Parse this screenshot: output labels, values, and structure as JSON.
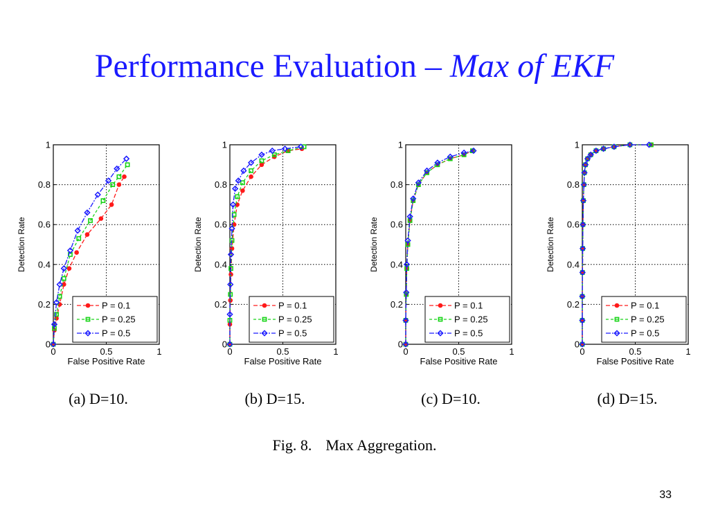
{
  "slide": {
    "title_main": "Performance Evaluation – ",
    "title_italic": "Max of EKF",
    "figure_caption_num": "Fig. 8.",
    "figure_caption_text": "Max Aggregation.",
    "page_number": "33"
  },
  "colors": {
    "title": "#1a1aff",
    "p01": "#ff1a1a",
    "p025": "#18d418",
    "p05": "#1a1aff"
  },
  "legend_labels": [
    "P = 0.1",
    "P = 0.25",
    "P = 0.5"
  ],
  "chart_data": [
    {
      "type": "line",
      "caption": "(a)  D=10.",
      "xlabel": "False Positive Rate",
      "ylabel": "Detection Rate",
      "xlim": [
        0,
        1
      ],
      "ylim": [
        0,
        1
      ],
      "xticks": [
        "0",
        "0.5",
        "1"
      ],
      "yticks": [
        "0",
        "0.2",
        "0.4",
        "0.6",
        "0.8",
        "1"
      ],
      "grid": true,
      "legend_position": "bottom-right",
      "series": [
        {
          "name": "P = 0.1",
          "color": "#ff1a1a",
          "marker": "circle",
          "x": [
            0,
            0.01,
            0.03,
            0.06,
            0.1,
            0.15,
            0.22,
            0.32,
            0.45,
            0.55,
            0.62,
            0.67
          ],
          "y": [
            0,
            0.07,
            0.13,
            0.2,
            0.3,
            0.38,
            0.46,
            0.55,
            0.63,
            0.7,
            0.8,
            0.84
          ]
        },
        {
          "name": "P = 0.25",
          "color": "#18d418",
          "marker": "square",
          "x": [
            0,
            0.01,
            0.03,
            0.06,
            0.1,
            0.16,
            0.24,
            0.35,
            0.47,
            0.56,
            0.62,
            0.7
          ],
          "y": [
            0,
            0.08,
            0.15,
            0.24,
            0.33,
            0.45,
            0.53,
            0.62,
            0.72,
            0.8,
            0.84,
            0.9
          ]
        },
        {
          "name": "P = 0.5",
          "color": "#1a1aff",
          "marker": "diamond",
          "x": [
            0,
            0.01,
            0.03,
            0.06,
            0.1,
            0.16,
            0.23,
            0.32,
            0.42,
            0.52,
            0.6,
            0.69
          ],
          "y": [
            0,
            0.1,
            0.21,
            0.3,
            0.38,
            0.47,
            0.57,
            0.66,
            0.75,
            0.82,
            0.88,
            0.93
          ]
        }
      ]
    },
    {
      "type": "line",
      "caption": "(b)  D=15.",
      "xlabel": "False Positive Rate",
      "ylabel": "Detection Rate",
      "xlim": [
        0,
        1
      ],
      "ylim": [
        0,
        1
      ],
      "xticks": [
        "0",
        "0.5",
        "1"
      ],
      "yticks": [
        "0",
        "0.2",
        "0.4",
        "0.6",
        "0.8",
        "1"
      ],
      "grid": true,
      "legend_position": "bottom-right",
      "series": [
        {
          "name": "P = 0.1",
          "color": "#ff1a1a",
          "marker": "circle",
          "x": [
            0,
            0,
            0.005,
            0.01,
            0.02,
            0.04,
            0.07,
            0.12,
            0.2,
            0.3,
            0.42,
            0.55,
            0.68
          ],
          "y": [
            0,
            0.1,
            0.22,
            0.35,
            0.48,
            0.6,
            0.7,
            0.77,
            0.84,
            0.9,
            0.94,
            0.97,
            0.98
          ]
        },
        {
          "name": "P = 0.25",
          "color": "#18d418",
          "marker": "square",
          "x": [
            0,
            0,
            0.005,
            0.01,
            0.02,
            0.04,
            0.07,
            0.12,
            0.2,
            0.3,
            0.42,
            0.55,
            0.7
          ],
          "y": [
            0,
            0.12,
            0.25,
            0.38,
            0.52,
            0.65,
            0.74,
            0.81,
            0.87,
            0.92,
            0.95,
            0.97,
            0.99
          ]
        },
        {
          "name": "P = 0.5",
          "color": "#1a1aff",
          "marker": "diamond",
          "x": [
            0,
            0,
            0.005,
            0.01,
            0.02,
            0.03,
            0.05,
            0.08,
            0.13,
            0.2,
            0.3,
            0.4,
            0.52,
            0.67
          ],
          "y": [
            0,
            0.15,
            0.3,
            0.45,
            0.58,
            0.7,
            0.78,
            0.82,
            0.87,
            0.91,
            0.95,
            0.97,
            0.98,
            0.99
          ]
        }
      ]
    },
    {
      "type": "line",
      "caption": "(c)  D=10.",
      "xlabel": "False Positive Rate",
      "ylabel": "Detection Rate",
      "xlim": [
        0,
        1
      ],
      "ylim": [
        0,
        1
      ],
      "xticks": [
        "0",
        "0.5",
        "1"
      ],
      "yticks": [
        "0",
        "0.2",
        "0.4",
        "0.6",
        "0.8",
        "1"
      ],
      "grid": true,
      "legend_position": "bottom-right",
      "series": [
        {
          "name": "P = 0.1",
          "color": "#ff1a1a",
          "marker": "circle",
          "x": [
            0,
            0,
            0.005,
            0.01,
            0.02,
            0.04,
            0.07,
            0.12,
            0.2,
            0.3,
            0.42,
            0.55,
            0.63
          ],
          "y": [
            0,
            0.12,
            0.25,
            0.38,
            0.5,
            0.62,
            0.72,
            0.8,
            0.86,
            0.9,
            0.93,
            0.95,
            0.97
          ]
        },
        {
          "name": "P = 0.25",
          "color": "#18d418",
          "marker": "square",
          "x": [
            0,
            0,
            0.005,
            0.01,
            0.02,
            0.04,
            0.07,
            0.12,
            0.2,
            0.3,
            0.42,
            0.55,
            0.63
          ],
          "y": [
            0,
            0.12,
            0.25,
            0.38,
            0.5,
            0.62,
            0.72,
            0.8,
            0.86,
            0.9,
            0.93,
            0.95,
            0.97
          ]
        },
        {
          "name": "P = 0.5",
          "color": "#1a1aff",
          "marker": "diamond",
          "x": [
            0,
            0,
            0.005,
            0.01,
            0.02,
            0.04,
            0.07,
            0.12,
            0.2,
            0.3,
            0.42,
            0.55,
            0.64
          ],
          "y": [
            0,
            0.12,
            0.26,
            0.4,
            0.52,
            0.64,
            0.73,
            0.81,
            0.87,
            0.91,
            0.94,
            0.96,
            0.97
          ]
        }
      ]
    },
    {
      "type": "line",
      "caption": "(d)  D=15.",
      "xlabel": "False Positive Rate",
      "ylabel": "Detection Rate",
      "xlim": [
        0,
        1
      ],
      "ylim": [
        0,
        1
      ],
      "xticks": [
        "0",
        "0.5",
        "1"
      ],
      "yticks": [
        "0",
        "0.2",
        "0.4",
        "0.6",
        "0.8",
        "1"
      ],
      "grid": true,
      "legend_position": "bottom-right",
      "series": [
        {
          "name": "P = 0.1",
          "color": "#ff1a1a",
          "marker": "circle",
          "x": [
            0,
            0,
            0,
            0.002,
            0.004,
            0.006,
            0.01,
            0.015,
            0.02,
            0.03,
            0.05,
            0.08,
            0.13,
            0.2,
            0.3,
            0.45,
            0.65
          ],
          "y": [
            0,
            0.12,
            0.24,
            0.36,
            0.48,
            0.6,
            0.72,
            0.8,
            0.86,
            0.9,
            0.93,
            0.95,
            0.97,
            0.98,
            0.99,
            1.0,
            1.0
          ]
        },
        {
          "name": "P = 0.25",
          "color": "#18d418",
          "marker": "square",
          "x": [
            0,
            0,
            0,
            0.002,
            0.004,
            0.006,
            0.01,
            0.015,
            0.02,
            0.03,
            0.05,
            0.08,
            0.13,
            0.2,
            0.3,
            0.45,
            0.65
          ],
          "y": [
            0,
            0.12,
            0.24,
            0.36,
            0.48,
            0.6,
            0.72,
            0.8,
            0.86,
            0.9,
            0.93,
            0.95,
            0.97,
            0.98,
            0.99,
            1.0,
            1.0
          ]
        },
        {
          "name": "P = 0.5",
          "color": "#1a1aff",
          "marker": "diamond",
          "x": [
            0,
            0,
            0,
            0.002,
            0.004,
            0.006,
            0.01,
            0.015,
            0.02,
            0.03,
            0.05,
            0.08,
            0.13,
            0.2,
            0.3,
            0.45,
            0.63
          ],
          "y": [
            0,
            0.12,
            0.24,
            0.36,
            0.48,
            0.6,
            0.72,
            0.8,
            0.86,
            0.9,
            0.93,
            0.95,
            0.97,
            0.98,
            0.99,
            1.0,
            1.0
          ]
        }
      ]
    }
  ]
}
